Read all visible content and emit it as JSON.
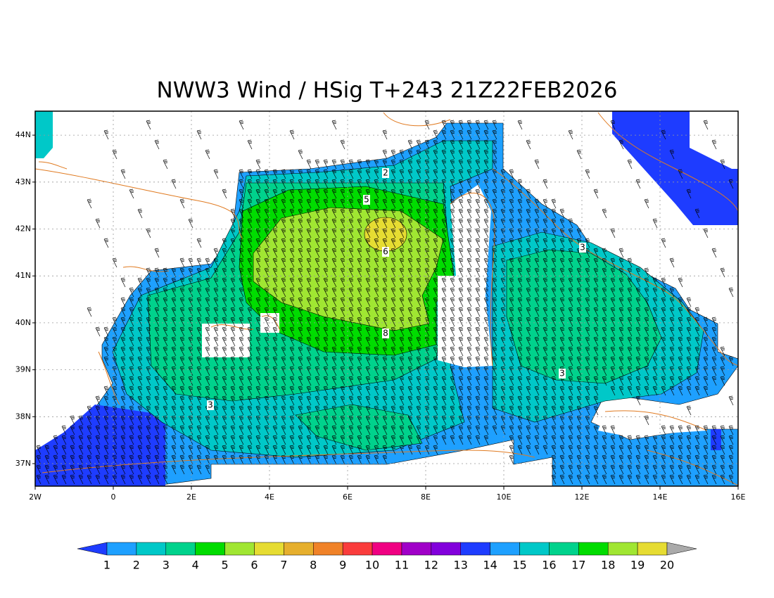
{
  "title": "NWW3 Wind / HSig T+243 21Z22FEB2026",
  "x_axis": {
    "labels": [
      "2W",
      "0",
      "2E",
      "4E",
      "6E",
      "8E",
      "10E",
      "12E",
      "14E",
      "16E"
    ]
  },
  "y_axis": {
    "labels": [
      "37N",
      "38N",
      "39N",
      "40N",
      "41N",
      "42N",
      "43N",
      "44N"
    ]
  },
  "contour_labels": [
    "2",
    "5",
    "6",
    "3",
    "8",
    "3",
    "3"
  ],
  "colorbar": {
    "labels": [
      "1",
      "2",
      "3",
      "4",
      "5",
      "6",
      "7",
      "8",
      "9",
      "10",
      "11",
      "12",
      "13",
      "14",
      "15",
      "16",
      "17",
      "18",
      "19",
      "20"
    ],
    "colors": [
      "#1e3cff",
      "#1ea0ff",
      "#00c8c8",
      "#00d28c",
      "#00dc00",
      "#a0e632",
      "#e6dc32",
      "#e6af2d",
      "#f08228",
      "#fa3c3c",
      "#f00082",
      "#a000c8",
      "#8200dc",
      "#1e3cff",
      "#1ea0ff",
      "#00c8c8",
      "#00d28c",
      "#00dc00",
      "#a0e632",
      "#e6dc32",
      "#aaaaaa"
    ]
  }
}
